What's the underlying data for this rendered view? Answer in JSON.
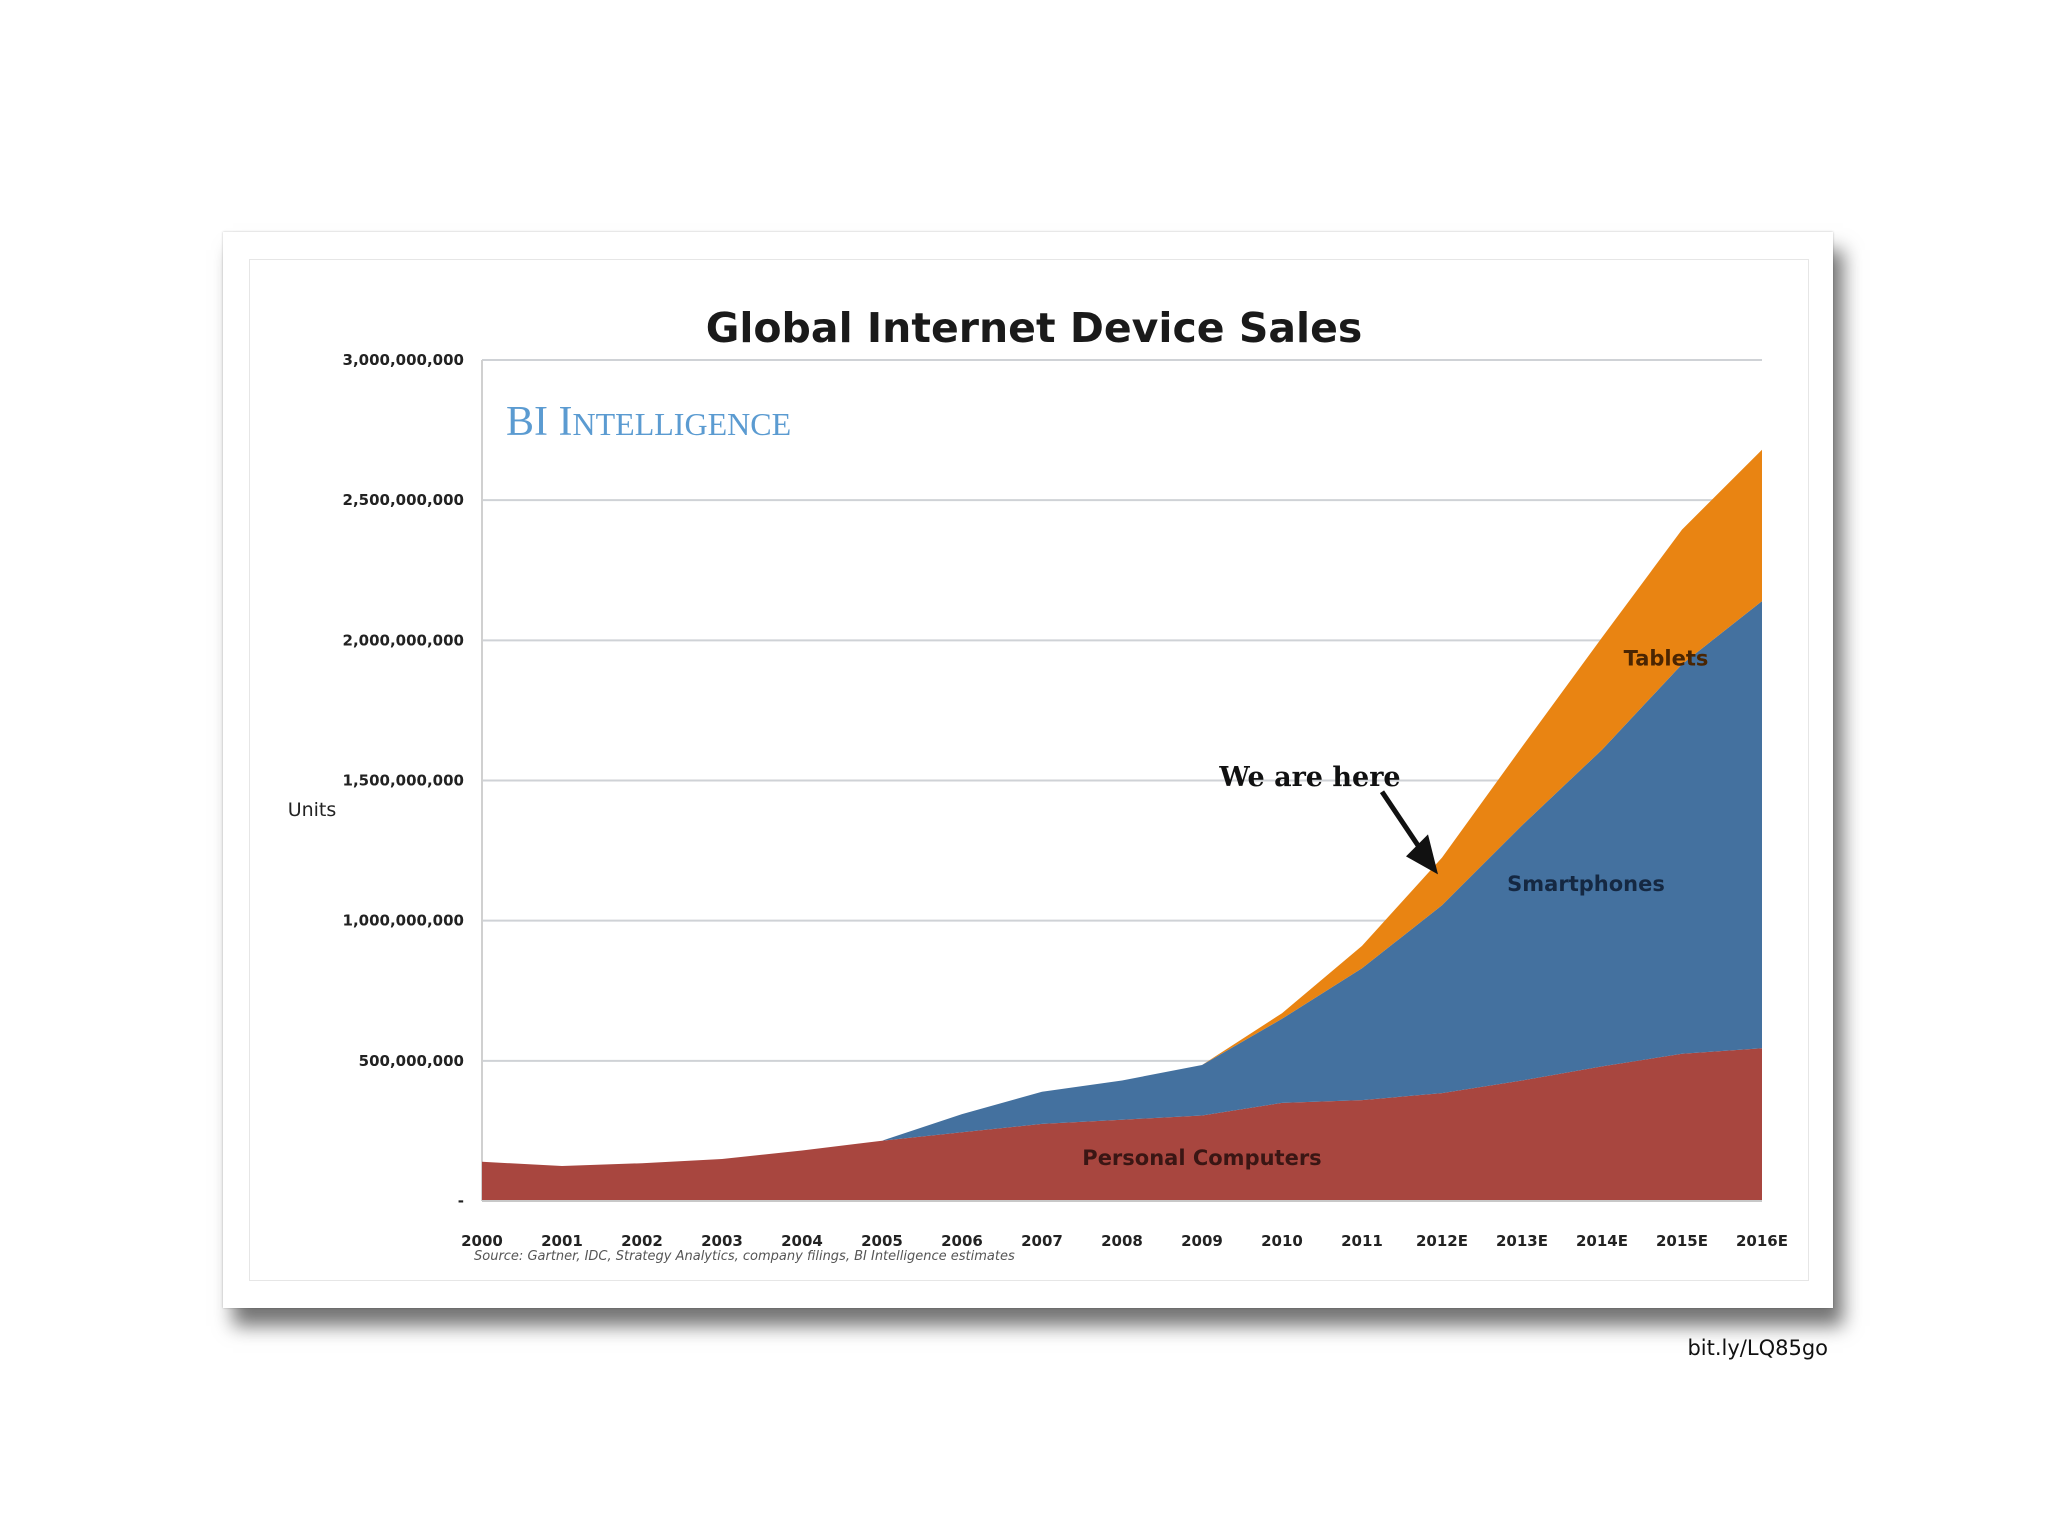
{
  "slide": {
    "link": "bit.ly/LQ85go"
  },
  "chart_data": {
    "type": "area",
    "stacked": true,
    "title": "Global Internet Device Sales",
    "brand": "BI INTELLIGENCE",
    "ylabel": "Units",
    "xlabel": "",
    "ylim": [
      0,
      3000000000
    ],
    "yticks": [
      {
        "value": 0,
        "label": "-"
      },
      {
        "value": 500000000,
        "label": "500,000,000"
      },
      {
        "value": 1000000000,
        "label": "1,000,000,000"
      },
      {
        "value": 1500000000,
        "label": "1,500,000,000"
      },
      {
        "value": 2000000000,
        "label": "2,000,000,000"
      },
      {
        "value": 2500000000,
        "label": "2,500,000,000"
      },
      {
        "value": 3000000000,
        "label": "3,000,000,000"
      }
    ],
    "categories": [
      "2000",
      "2001",
      "2002",
      "2003",
      "2004",
      "2005",
      "2006",
      "2007",
      "2008",
      "2009",
      "2010",
      "2011",
      "2012E",
      "2013E",
      "2014E",
      "2015E",
      "2016E"
    ],
    "series": [
      {
        "name": "Personal Computers",
        "color": "#a8463f",
        "values": [
          140000000,
          125000000,
          135000000,
          150000000,
          180000000,
          215000000,
          245000000,
          275000000,
          290000000,
          305000000,
          350000000,
          360000000,
          385000000,
          430000000,
          480000000,
          525000000,
          545000000
        ]
      },
      {
        "name": "Smartphones",
        "color": "#44719f",
        "values": [
          0,
          0,
          0,
          0,
          0,
          0,
          65000000,
          115000000,
          140000000,
          180000000,
          300000000,
          470000000,
          670000000,
          910000000,
          1130000000,
          1390000000,
          1595000000
        ]
      },
      {
        "name": "Tablets",
        "color": "#e98412",
        "values": [
          0,
          0,
          0,
          0,
          0,
          0,
          0,
          0,
          0,
          0,
          20000000,
          80000000,
          170000000,
          280000000,
          400000000,
          480000000,
          540000000
        ]
      }
    ],
    "grid": true,
    "legend": "none",
    "annotation": "We are here",
    "source": "Source: Gartner, IDC, Strategy Analytics, company filings, BI Intelligence estimates"
  }
}
